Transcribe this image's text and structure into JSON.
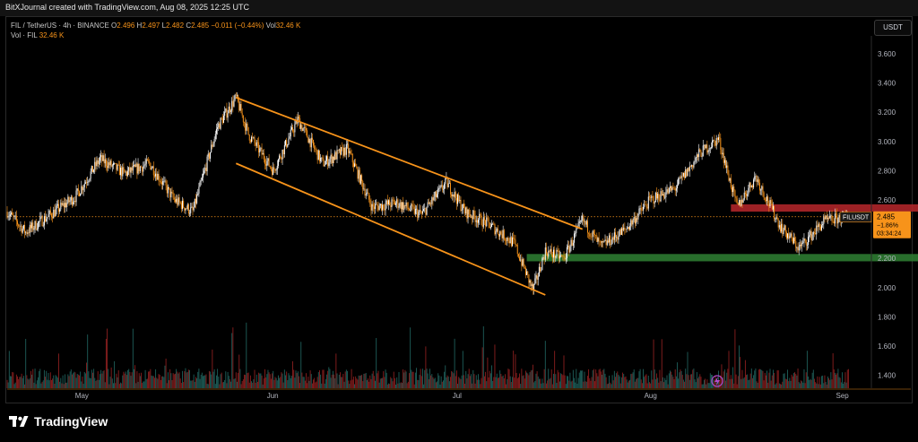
{
  "header": {
    "credit": "BitXJournal created with TradingView.com, Aug 08, 2025 12:25 UTC"
  },
  "legend": {
    "symbol_line": "FIL / TetherUS · 4h · BINANCE",
    "o_label": "O",
    "o_value": "2.496",
    "h_label": "H",
    "h_value": "2.497",
    "l_label": "L",
    "l_value": "2.482",
    "c_label": "C",
    "c_value": "2.485",
    "change": "−0.011 (−0.44%)",
    "vol_label": "Vol",
    "vol_value": "32.46 K",
    "vol_line_label": "Vol · FIL",
    "vol_line_value": "32.46 K"
  },
  "toolbar": {
    "currency_button": "USDT"
  },
  "price_tag": {
    "symbol": "FILUSDT",
    "price": "2.485",
    "change_pct": "−1.86%",
    "countdown": "03:34:24"
  },
  "footer": {
    "brand": "TradingView"
  },
  "colors": {
    "up": "#ffffff",
    "down": "#f7931a",
    "channel": "#f7931a",
    "resistance_zone": "#b3262a",
    "support_zone": "#2e7d32",
    "current_price_line": "#f7931a",
    "volume_up": "#1f5f5a",
    "volume_down": "#8a1f1f"
  },
  "chart_data": {
    "type": "candlestick",
    "symbol": "FIL / TetherUS",
    "interval": "4h",
    "exchange": "BINANCE",
    "y_axis": {
      "ticks": [
        1.4,
        1.6,
        1.8,
        2.0,
        2.2,
        2.4,
        2.6,
        2.8,
        3.0,
        3.2,
        3.4,
        3.6
      ],
      "range": [
        1.3,
        3.8
      ]
    },
    "x_axis": {
      "ticks": [
        "May",
        "Jun",
        "Jul",
        "Aug",
        "Sep"
      ]
    },
    "price_path": [
      {
        "date": "2025-04-19",
        "price": 2.52
      },
      {
        "date": "2025-04-22",
        "price": 2.38
      },
      {
        "date": "2025-04-26",
        "price": 2.5
      },
      {
        "date": "2025-04-30",
        "price": 2.62
      },
      {
        "date": "2025-05-04",
        "price": 2.88
      },
      {
        "date": "2025-05-08",
        "price": 2.78
      },
      {
        "date": "2025-05-12",
        "price": 2.85
      },
      {
        "date": "2025-05-16",
        "price": 2.6
      },
      {
        "date": "2025-05-19",
        "price": 2.52
      },
      {
        "date": "2025-05-23",
        "price": 3.1
      },
      {
        "date": "2025-05-26",
        "price": 3.3
      },
      {
        "date": "2025-05-28",
        "price": 3.05
      },
      {
        "date": "2025-06-01",
        "price": 2.8
      },
      {
        "date": "2025-06-05",
        "price": 3.15
      },
      {
        "date": "2025-06-09",
        "price": 2.85
      },
      {
        "date": "2025-06-13",
        "price": 2.95
      },
      {
        "date": "2025-06-17",
        "price": 2.55
      },
      {
        "date": "2025-06-21",
        "price": 2.58
      },
      {
        "date": "2025-06-25",
        "price": 2.5
      },
      {
        "date": "2025-06-29",
        "price": 2.72
      },
      {
        "date": "2025-07-02",
        "price": 2.52
      },
      {
        "date": "2025-07-06",
        "price": 2.43
      },
      {
        "date": "2025-07-10",
        "price": 2.3
      },
      {
        "date": "2025-07-13",
        "price": 1.98
      },
      {
        "date": "2025-07-15",
        "price": 2.25
      },
      {
        "date": "2025-07-18",
        "price": 2.2
      },
      {
        "date": "2025-07-21",
        "price": 2.46
      },
      {
        "date": "2025-07-24",
        "price": 2.28
      },
      {
        "date": "2025-07-28",
        "price": 2.4
      },
      {
        "date": "2025-08-01",
        "price": 2.6
      },
      {
        "date": "2025-08-05",
        "price": 2.68
      },
      {
        "date": "2025-08-09",
        "price": 2.92
      },
      {
        "date": "2025-08-12",
        "price": 3.02
      },
      {
        "date": "2025-08-15",
        "price": 2.55
      },
      {
        "date": "2025-08-18",
        "price": 2.76
      },
      {
        "date": "2025-08-22",
        "price": 2.42
      },
      {
        "date": "2025-08-25",
        "price": 2.27
      },
      {
        "date": "2025-08-29",
        "price": 2.45
      },
      {
        "date": "2025-09-02",
        "price": 2.49
      }
    ],
    "current_price": 2.485,
    "annotations": [
      {
        "type": "channel_upper",
        "from": {
          "date": "2025-05-26",
          "price": 3.3
        },
        "to": {
          "date": "2025-07-21",
          "price": 2.4
        }
      },
      {
        "type": "channel_lower",
        "from": {
          "date": "2025-05-26",
          "price": 2.85
        },
        "to": {
          "date": "2025-07-15",
          "price": 1.95
        }
      },
      {
        "type": "resistance_zone",
        "from_date": "2025-08-14",
        "to_date": "2025-09-23",
        "low": 2.52,
        "high": 2.57
      },
      {
        "type": "support_zone",
        "from_date": "2025-07-12",
        "to_date": "2025-09-24",
        "low": 2.18,
        "high": 2.23
      }
    ],
    "volume_series": "Vol · FIL",
    "grid": false,
    "legend_position": "top-left"
  }
}
